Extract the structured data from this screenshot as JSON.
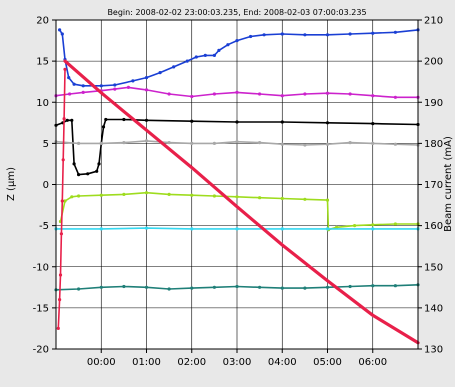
{
  "chart_data": {
    "type": "line",
    "title": "Begin: 2008-02-02 23:00:03.235, End: 2008-02-03 07:00:03.235",
    "ylabel": "Z (µm)",
    "y2label": "Beam current (mA)",
    "xlabel": "",
    "x_tick_labels": [
      "00:00",
      "01:00",
      "02:00",
      "03:00",
      "04:00",
      "05:00",
      "06:00"
    ],
    "x_tick_hours": [
      1,
      2,
      3,
      4,
      5,
      6,
      7
    ],
    "xlim_hours": [
      0,
      8
    ],
    "ylim": [
      -20,
      20
    ],
    "y_ticks": [
      20,
      15,
      10,
      5,
      0,
      -5,
      -10,
      -15,
      -20
    ],
    "y2lim": [
      130,
      210
    ],
    "y2_ticks": [
      210,
      200,
      190,
      180,
      170,
      160,
      150,
      140,
      130
    ],
    "grid": true,
    "background": "#ffffff",
    "series": [
      {
        "axis": "left",
        "color": "#1a3fd4",
        "style": "points",
        "points": [
          [
            0.08,
            18.8
          ],
          [
            0.14,
            18.3
          ],
          [
            0.2,
            15.2
          ],
          [
            0.28,
            13.0
          ],
          [
            0.4,
            12.2
          ],
          [
            0.6,
            12.0
          ],
          [
            1.0,
            12.0
          ],
          [
            1.3,
            12.1
          ],
          [
            1.7,
            12.6
          ],
          [
            2.0,
            13.0
          ],
          [
            2.3,
            13.6
          ],
          [
            2.6,
            14.3
          ],
          [
            2.9,
            15.0
          ],
          [
            3.1,
            15.5
          ],
          [
            3.3,
            15.7
          ],
          [
            3.5,
            15.7
          ],
          [
            3.6,
            16.3
          ],
          [
            3.8,
            17.0
          ],
          [
            4.0,
            17.5
          ],
          [
            4.3,
            18.0
          ],
          [
            4.6,
            18.2
          ],
          [
            5.0,
            18.3
          ],
          [
            5.5,
            18.2
          ],
          [
            6.0,
            18.2
          ],
          [
            6.5,
            18.3
          ],
          [
            7.0,
            18.4
          ],
          [
            7.5,
            18.5
          ],
          [
            8.0,
            18.8
          ]
        ]
      },
      {
        "axis": "left",
        "color": "#cc22cc",
        "style": "points",
        "points": [
          [
            0.0,
            10.8
          ],
          [
            0.3,
            11.0
          ],
          [
            0.6,
            11.2
          ],
          [
            1.0,
            11.4
          ],
          [
            1.3,
            11.6
          ],
          [
            1.6,
            11.8
          ],
          [
            2.0,
            11.5
          ],
          [
            2.5,
            11.0
          ],
          [
            3.0,
            10.7
          ],
          [
            3.5,
            11.0
          ],
          [
            4.0,
            11.2
          ],
          [
            4.5,
            11.0
          ],
          [
            5.0,
            10.8
          ],
          [
            5.5,
            11.0
          ],
          [
            6.0,
            11.1
          ],
          [
            6.5,
            11.0
          ],
          [
            7.0,
            10.8
          ],
          [
            7.5,
            10.6
          ],
          [
            8.0,
            10.6
          ]
        ]
      },
      {
        "axis": "left",
        "color": "#000000",
        "style": "points",
        "points": [
          [
            0.0,
            7.2
          ],
          [
            0.15,
            7.5
          ],
          [
            0.25,
            7.8
          ],
          [
            0.35,
            7.8
          ],
          [
            0.4,
            2.5
          ],
          [
            0.5,
            1.2
          ],
          [
            0.7,
            1.3
          ],
          [
            0.9,
            1.6
          ],
          [
            0.95,
            2.5
          ],
          [
            1.0,
            5.0
          ],
          [
            1.05,
            7.0
          ],
          [
            1.1,
            7.9
          ],
          [
            1.5,
            7.9
          ],
          [
            2.0,
            7.8
          ],
          [
            3.0,
            7.7
          ],
          [
            4.0,
            7.6
          ],
          [
            5.0,
            7.6
          ],
          [
            6.0,
            7.5
          ],
          [
            7.0,
            7.4
          ],
          [
            8.0,
            7.3
          ]
        ]
      },
      {
        "axis": "left",
        "color": "#a8a8a8",
        "style": "points",
        "points": [
          [
            0.0,
            5.2
          ],
          [
            0.5,
            5.0
          ],
          [
            1.0,
            5.0
          ],
          [
            1.5,
            5.1
          ],
          [
            2.0,
            5.3
          ],
          [
            2.5,
            5.1
          ],
          [
            3.0,
            5.0
          ],
          [
            3.5,
            5.0
          ],
          [
            4.0,
            5.2
          ],
          [
            4.5,
            5.1
          ],
          [
            5.0,
            4.9
          ],
          [
            5.5,
            4.8
          ],
          [
            6.0,
            4.9
          ],
          [
            6.5,
            5.1
          ],
          [
            7.0,
            5.0
          ],
          [
            7.5,
            4.9
          ],
          [
            8.0,
            4.8
          ]
        ]
      },
      {
        "axis": "left",
        "color": "#9edc1e",
        "style": "points",
        "points": [
          [
            0.1,
            -4.5
          ],
          [
            0.2,
            -2.0
          ],
          [
            0.35,
            -1.5
          ],
          [
            0.5,
            -1.4
          ],
          [
            1.0,
            -1.3
          ],
          [
            1.5,
            -1.2
          ],
          [
            2.0,
            -1.0
          ],
          [
            2.5,
            -1.2
          ],
          [
            3.0,
            -1.3
          ],
          [
            3.5,
            -1.4
          ],
          [
            4.0,
            -1.5
          ],
          [
            4.5,
            -1.6
          ],
          [
            5.0,
            -1.7
          ],
          [
            5.5,
            -1.8
          ],
          [
            6.0,
            -1.9
          ],
          [
            6.02,
            -5.5
          ],
          [
            6.2,
            -5.2
          ],
          [
            6.6,
            -5.0
          ],
          [
            7.0,
            -4.9
          ],
          [
            7.5,
            -4.8
          ],
          [
            8.0,
            -4.8
          ]
        ]
      },
      {
        "axis": "left",
        "color": "#35d8f0",
        "style": "points",
        "points": [
          [
            0.0,
            -5.4
          ],
          [
            1.0,
            -5.4
          ],
          [
            2.0,
            -5.3
          ],
          [
            3.0,
            -5.4
          ],
          [
            4.0,
            -5.4
          ],
          [
            5.0,
            -5.4
          ],
          [
            6.0,
            -5.4
          ],
          [
            7.0,
            -5.4
          ],
          [
            8.0,
            -5.4
          ]
        ]
      },
      {
        "axis": "left",
        "color": "#1f7f78",
        "style": "points",
        "points": [
          [
            0.0,
            -12.8
          ],
          [
            0.5,
            -12.7
          ],
          [
            1.0,
            -12.5
          ],
          [
            1.5,
            -12.4
          ],
          [
            2.0,
            -12.5
          ],
          [
            2.5,
            -12.7
          ],
          [
            3.0,
            -12.6
          ],
          [
            3.5,
            -12.5
          ],
          [
            4.0,
            -12.4
          ],
          [
            4.5,
            -12.5
          ],
          [
            5.0,
            -12.6
          ],
          [
            5.5,
            -12.6
          ],
          [
            6.0,
            -12.5
          ],
          [
            6.5,
            -12.4
          ],
          [
            7.0,
            -12.3
          ],
          [
            7.5,
            -12.3
          ],
          [
            8.0,
            -12.2
          ]
        ]
      },
      {
        "axis": "left",
        "color": "#e8204a",
        "style": "points",
        "points": [
          [
            0.05,
            -17.5
          ],
          [
            0.08,
            -14.0
          ],
          [
            0.1,
            -11.0
          ],
          [
            0.12,
            -6.0
          ],
          [
            0.14,
            -2.0
          ],
          [
            0.16,
            3.0
          ],
          [
            0.18,
            8.0
          ],
          [
            0.2,
            14.0
          ]
        ]
      },
      {
        "axis": "right",
        "color": "#e8204a",
        "style": "line",
        "points": [
          [
            0.2,
            200.0
          ],
          [
            1.0,
            192.3
          ],
          [
            2.0,
            183.2
          ],
          [
            3.0,
            174.1
          ],
          [
            4.0,
            164.6
          ],
          [
            5.0,
            155.3
          ],
          [
            6.0,
            146.6
          ],
          [
            7.0,
            138.2
          ],
          [
            8.0,
            131.5
          ]
        ]
      }
    ]
  }
}
